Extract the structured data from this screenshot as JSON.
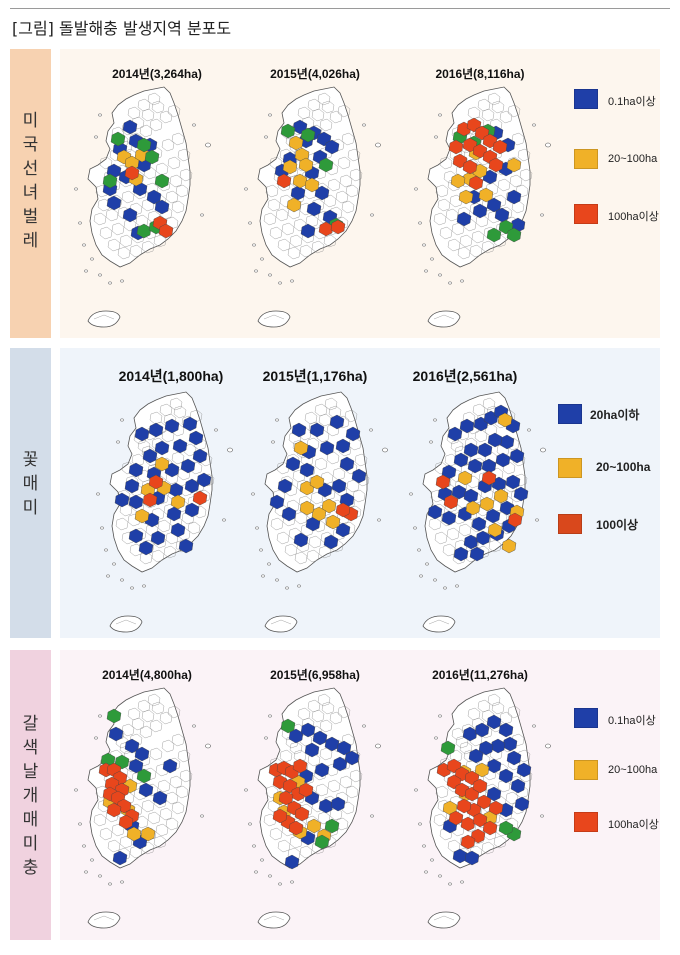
{
  "title": "[그림] 돌발해충 발생지역 분포도",
  "colors": {
    "blue": "#1f3fa8",
    "yellow": "#f0b128",
    "red": "#e8461c",
    "green": "#2e9a3a",
    "outline": "#555555"
  },
  "sections": [
    {
      "label": "미국선녀벌레",
      "sidebar_color": "#f7d2b1",
      "panel_color": "#fdf6ee",
      "maps": [
        {
          "year_label": "2014년(3,264ha)"
        },
        {
          "year_label": "2015년(4,026ha)"
        },
        {
          "year_label": "2016년(8,116ha)"
        }
      ],
      "legend": [
        {
          "label": "0.1ha이상",
          "color": "#1f3fa8"
        },
        {
          "label": "20~100ha",
          "color": "#f0b128"
        },
        {
          "label": "100ha이상",
          "color": "#e8461c"
        }
      ]
    },
    {
      "label": "꽃매미",
      "sidebar_color": "#d3dde9",
      "panel_color": "#eff4fa",
      "maps": [
        {
          "year_label": "2014년(1,800ha)"
        },
        {
          "year_label": "2015년(1,176ha)"
        },
        {
          "year_label": "2016년(2,561ha)"
        }
      ],
      "legend": [
        {
          "label": "20ha이하",
          "color": "#1f3fa8"
        },
        {
          "label": "20~100ha",
          "color": "#f0b128"
        },
        {
          "label": "100이상",
          "color": "#d9481c"
        }
      ]
    },
    {
      "label": "갈색날개매미충",
      "sidebar_color": "#f0d2df",
      "panel_color": "#fbf3f7",
      "maps": [
        {
          "year_label": "2014년(4,800ha)"
        },
        {
          "year_label": "2015년(6,958ha)"
        },
        {
          "year_label": "2016년(11,276ha)"
        }
      ],
      "legend": [
        {
          "label": "0.1ha이상",
          "color": "#1f3fa8"
        },
        {
          "label": "20~100ha",
          "color": "#f0b128"
        },
        {
          "label": "100ha이상",
          "color": "#e8461c"
        }
      ]
    }
  ]
}
